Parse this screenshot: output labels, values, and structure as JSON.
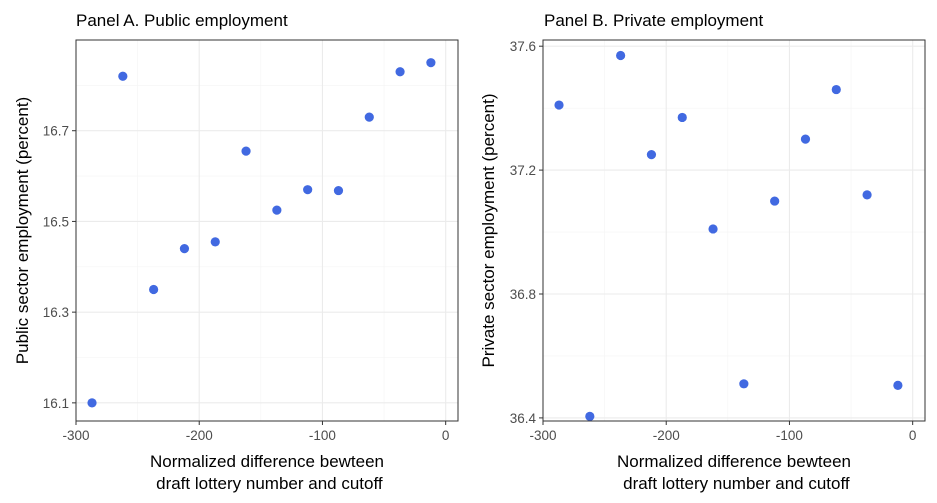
{
  "chart_data": [
    {
      "type": "scatter",
      "title": "Panel A. Public employment",
      "xlabel": [
        "Normalized difference bewteen",
        "draft lottery number and cutoff"
      ],
      "ylabel": "Public sector employment (percent)",
      "xlim": [
        -300,
        10
      ],
      "ylim": [
        16.06,
        16.9
      ],
      "xticks": [
        -300,
        -200,
        -100,
        0
      ],
      "xtick_labels": [
        "-300",
        "-200",
        "-100",
        "0"
      ],
      "yticks": [
        16.1,
        16.3,
        16.5,
        16.7
      ],
      "ytick_labels": [
        "16.1",
        "16.3",
        "16.5",
        "16.7"
      ],
      "grid": true,
      "color": "#4169e1",
      "points": [
        {
          "x": -287,
          "y": 16.1
        },
        {
          "x": -262,
          "y": 16.82
        },
        {
          "x": -237,
          "y": 16.35
        },
        {
          "x": -212,
          "y": 16.44
        },
        {
          "x": -187,
          "y": 16.455
        },
        {
          "x": -162,
          "y": 16.655
        },
        {
          "x": -137,
          "y": 16.525
        },
        {
          "x": -112,
          "y": 16.57
        },
        {
          "x": -87,
          "y": 16.568
        },
        {
          "x": -62,
          "y": 16.73
        },
        {
          "x": -37,
          "y": 16.83
        },
        {
          "x": -12,
          "y": 16.85
        }
      ]
    },
    {
      "type": "scatter",
      "title": "Panel B. Private employment",
      "xlabel": [
        "Normalized difference bewteen",
        "draft lottery number and cutoff"
      ],
      "ylabel": "Private sector employment (percent)",
      "xlim": [
        -300,
        10
      ],
      "ylim": [
        36.39,
        37.62
      ],
      "xticks": [
        -300,
        -200,
        -100,
        0
      ],
      "xtick_labels": [
        "-300",
        "-200",
        "-100",
        "0"
      ],
      "yticks": [
        36.4,
        36.8,
        37.2,
        37.6
      ],
      "ytick_labels": [
        "36.4",
        "36.8",
        "37.2",
        "37.6"
      ],
      "grid": true,
      "color": "#4169e1",
      "points": [
        {
          "x": -287,
          "y": 37.41
        },
        {
          "x": -262,
          "y": 36.405
        },
        {
          "x": -237,
          "y": 37.57
        },
        {
          "x": -212,
          "y": 37.25
        },
        {
          "x": -187,
          "y": 37.37
        },
        {
          "x": -162,
          "y": 37.01
        },
        {
          "x": -137,
          "y": 36.51
        },
        {
          "x": -112,
          "y": 37.1
        },
        {
          "x": -87,
          "y": 37.3
        },
        {
          "x": -62,
          "y": 37.46
        },
        {
          "x": -37,
          "y": 37.12
        },
        {
          "x": -12,
          "y": 36.505
        }
      ]
    }
  ]
}
